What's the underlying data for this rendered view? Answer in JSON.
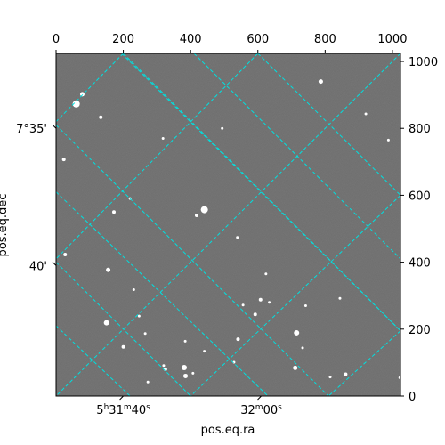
{
  "chart_data": {
    "type": "scatter",
    "title": "",
    "xlabel": "pos.eq.ra",
    "ylabel": "pos.eq.dec",
    "pixel_axes": {
      "xlim": [
        0,
        1024
      ],
      "ylim": [
        0,
        1024
      ],
      "xticks": [
        0,
        200,
        400,
        600,
        800,
        1000
      ],
      "yticks": [
        0,
        200,
        400,
        600,
        800,
        1000
      ]
    },
    "world_ticks": {
      "ra": [
        {
          "at": 200,
          "label": "5h31m40s"
        },
        {
          "at": 610,
          "label": "32m00s"
        }
      ],
      "dec": [
        {
          "at": 800,
          "label": "7°35'"
        },
        {
          "at": 390,
          "label": "40'"
        }
      ]
    },
    "grid": true,
    "grid_color": "#00e0e0",
    "background_color": "#6b6b6b",
    "stars": {
      "x": [
        60,
        78,
        23,
        172,
        133,
        220,
        318,
        441,
        418,
        494,
        539,
        608,
        592,
        715,
        733,
        787,
        921,
        988,
        27,
        155,
        150,
        200,
        247,
        325,
        320,
        381,
        385,
        407,
        529,
        541,
        556,
        711,
        815,
        861,
        1022,
        273,
        231,
        265,
        384,
        441,
        624,
        634,
        742,
        844
      ],
      "y": [
        873,
        902,
        707,
        550,
        833,
        590,
        770,
        557,
        540,
        800,
        474,
        288,
        244,
        189,
        144,
        940,
        843,
        765,
        423,
        377,
        219,
        147,
        239,
        80,
        91,
        85,
        60,
        68,
        101,
        170,
        272,
        84,
        57,
        65,
        55,
        42,
        318,
        187,
        164,
        134,
        365,
        280,
        270,
        292
      ]
    },
    "star_magnitude_size": [
      4,
      2.5,
      2,
      2,
      2,
      1.5,
      1.5,
      4,
      2,
      1.5,
      1.5,
      2,
      2,
      3,
      1.5,
      2.5,
      1.5,
      1.5,
      2,
      2.5,
      3,
      2,
      1.5,
      2,
      1.5,
      3,
      2.5,
      1.5,
      1.5,
      2,
      1.5,
      2.5,
      1.5,
      2,
      1.5,
      1.5,
      1.5,
      1.5,
      1.5,
      1.5,
      1.5,
      1.5,
      1.5,
      1.5
    ],
    "grid_lines": [
      {
        "from": [
          195,
          1024
        ],
        "to": [
          1024,
          195
        ]
      },
      {
        "from": [
          0,
          610
        ],
        "to": [
          630,
          0
        ]
      },
      {
        "from": [
          0,
          210
        ],
        "to": [
          220,
          0
        ]
      },
      {
        "from": [
          410,
          1024
        ],
        "to": [
          1024,
          410
        ]
      },
      {
        "from": [
          200,
          1024
        ],
        "to": [
          1024,
          195
        ]
      },
      {
        "from": [
          600,
          1024
        ],
        "to": [
          1024,
          600
        ]
      },
      {
        "from": [
          0,
          810
        ],
        "to": [
          810,
          0
        ]
      },
      {
        "from": [
          0,
          400
        ],
        "to": [
          400,
          0
        ]
      },
      {
        "from": [
          600,
          1024
        ],
        "to": [
          0,
          410
        ]
      },
      {
        "from": [
          200,
          1024
        ],
        "to": [
          0,
          820
        ]
      },
      {
        "from": [
          1024,
          600
        ],
        "to": [
          400,
          0
        ]
      },
      {
        "from": [
          1024,
          195
        ],
        "to": [
          810,
          0
        ]
      },
      {
        "from": [
          1024,
          1024
        ],
        "to": [
          0,
          0
        ]
      }
    ]
  }
}
